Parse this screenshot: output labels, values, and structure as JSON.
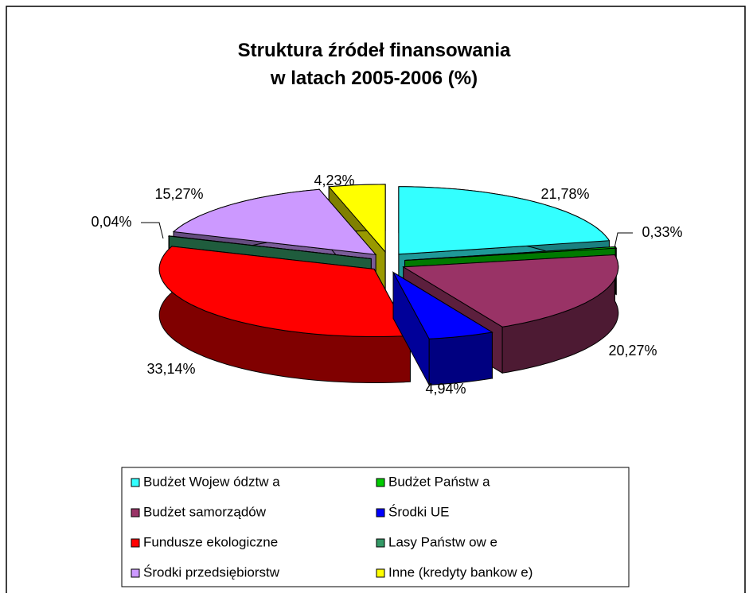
{
  "chart_data": {
    "type": "pie3d",
    "title": "Struktura źródeł finansowania\nw latach 2005-2006 (%)",
    "categories": [
      "Budżet Wojew ództw a",
      "Budżet Państw a",
      "Budżet samorządów",
      "Środki UE",
      "Fundusze ekologiczne",
      "Lasy Państw ow e",
      "Środki przedsiębiorstw",
      "Inne (kredyty bankow e)"
    ],
    "values": [
      21.78,
      0.33,
      20.27,
      4.94,
      33.14,
      0.04,
      15.27,
      4.23
    ],
    "value_labels": [
      "21,78%",
      "0,33%",
      "20,27%",
      "4,94%",
      "33,14%",
      "0,04%",
      "15,27%",
      "4,23%"
    ],
    "colors": [
      "#33FFFF",
      "#00CC00",
      "#993366",
      "#0000FF",
      "#FF0000",
      "#339966",
      "#CC99FF",
      "#FFFF00"
    ],
    "legend": "bottom"
  }
}
